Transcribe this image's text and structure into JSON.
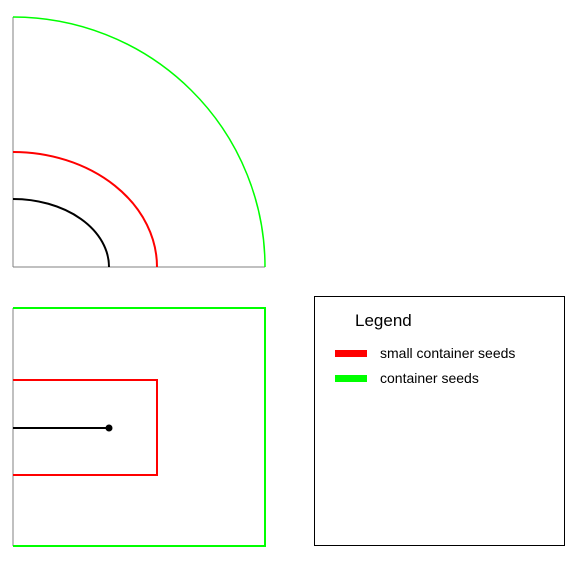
{
  "legend": {
    "title": "Legend",
    "items": [
      {
        "label": "small container seeds",
        "color": "#ff0000"
      },
      {
        "label": "container seeds",
        "color": "#00ff00"
      }
    ]
  },
  "colors": {
    "inner": "#000000",
    "small_container": "#ff0000",
    "container": "#00ff00",
    "axis": "#808080"
  }
}
